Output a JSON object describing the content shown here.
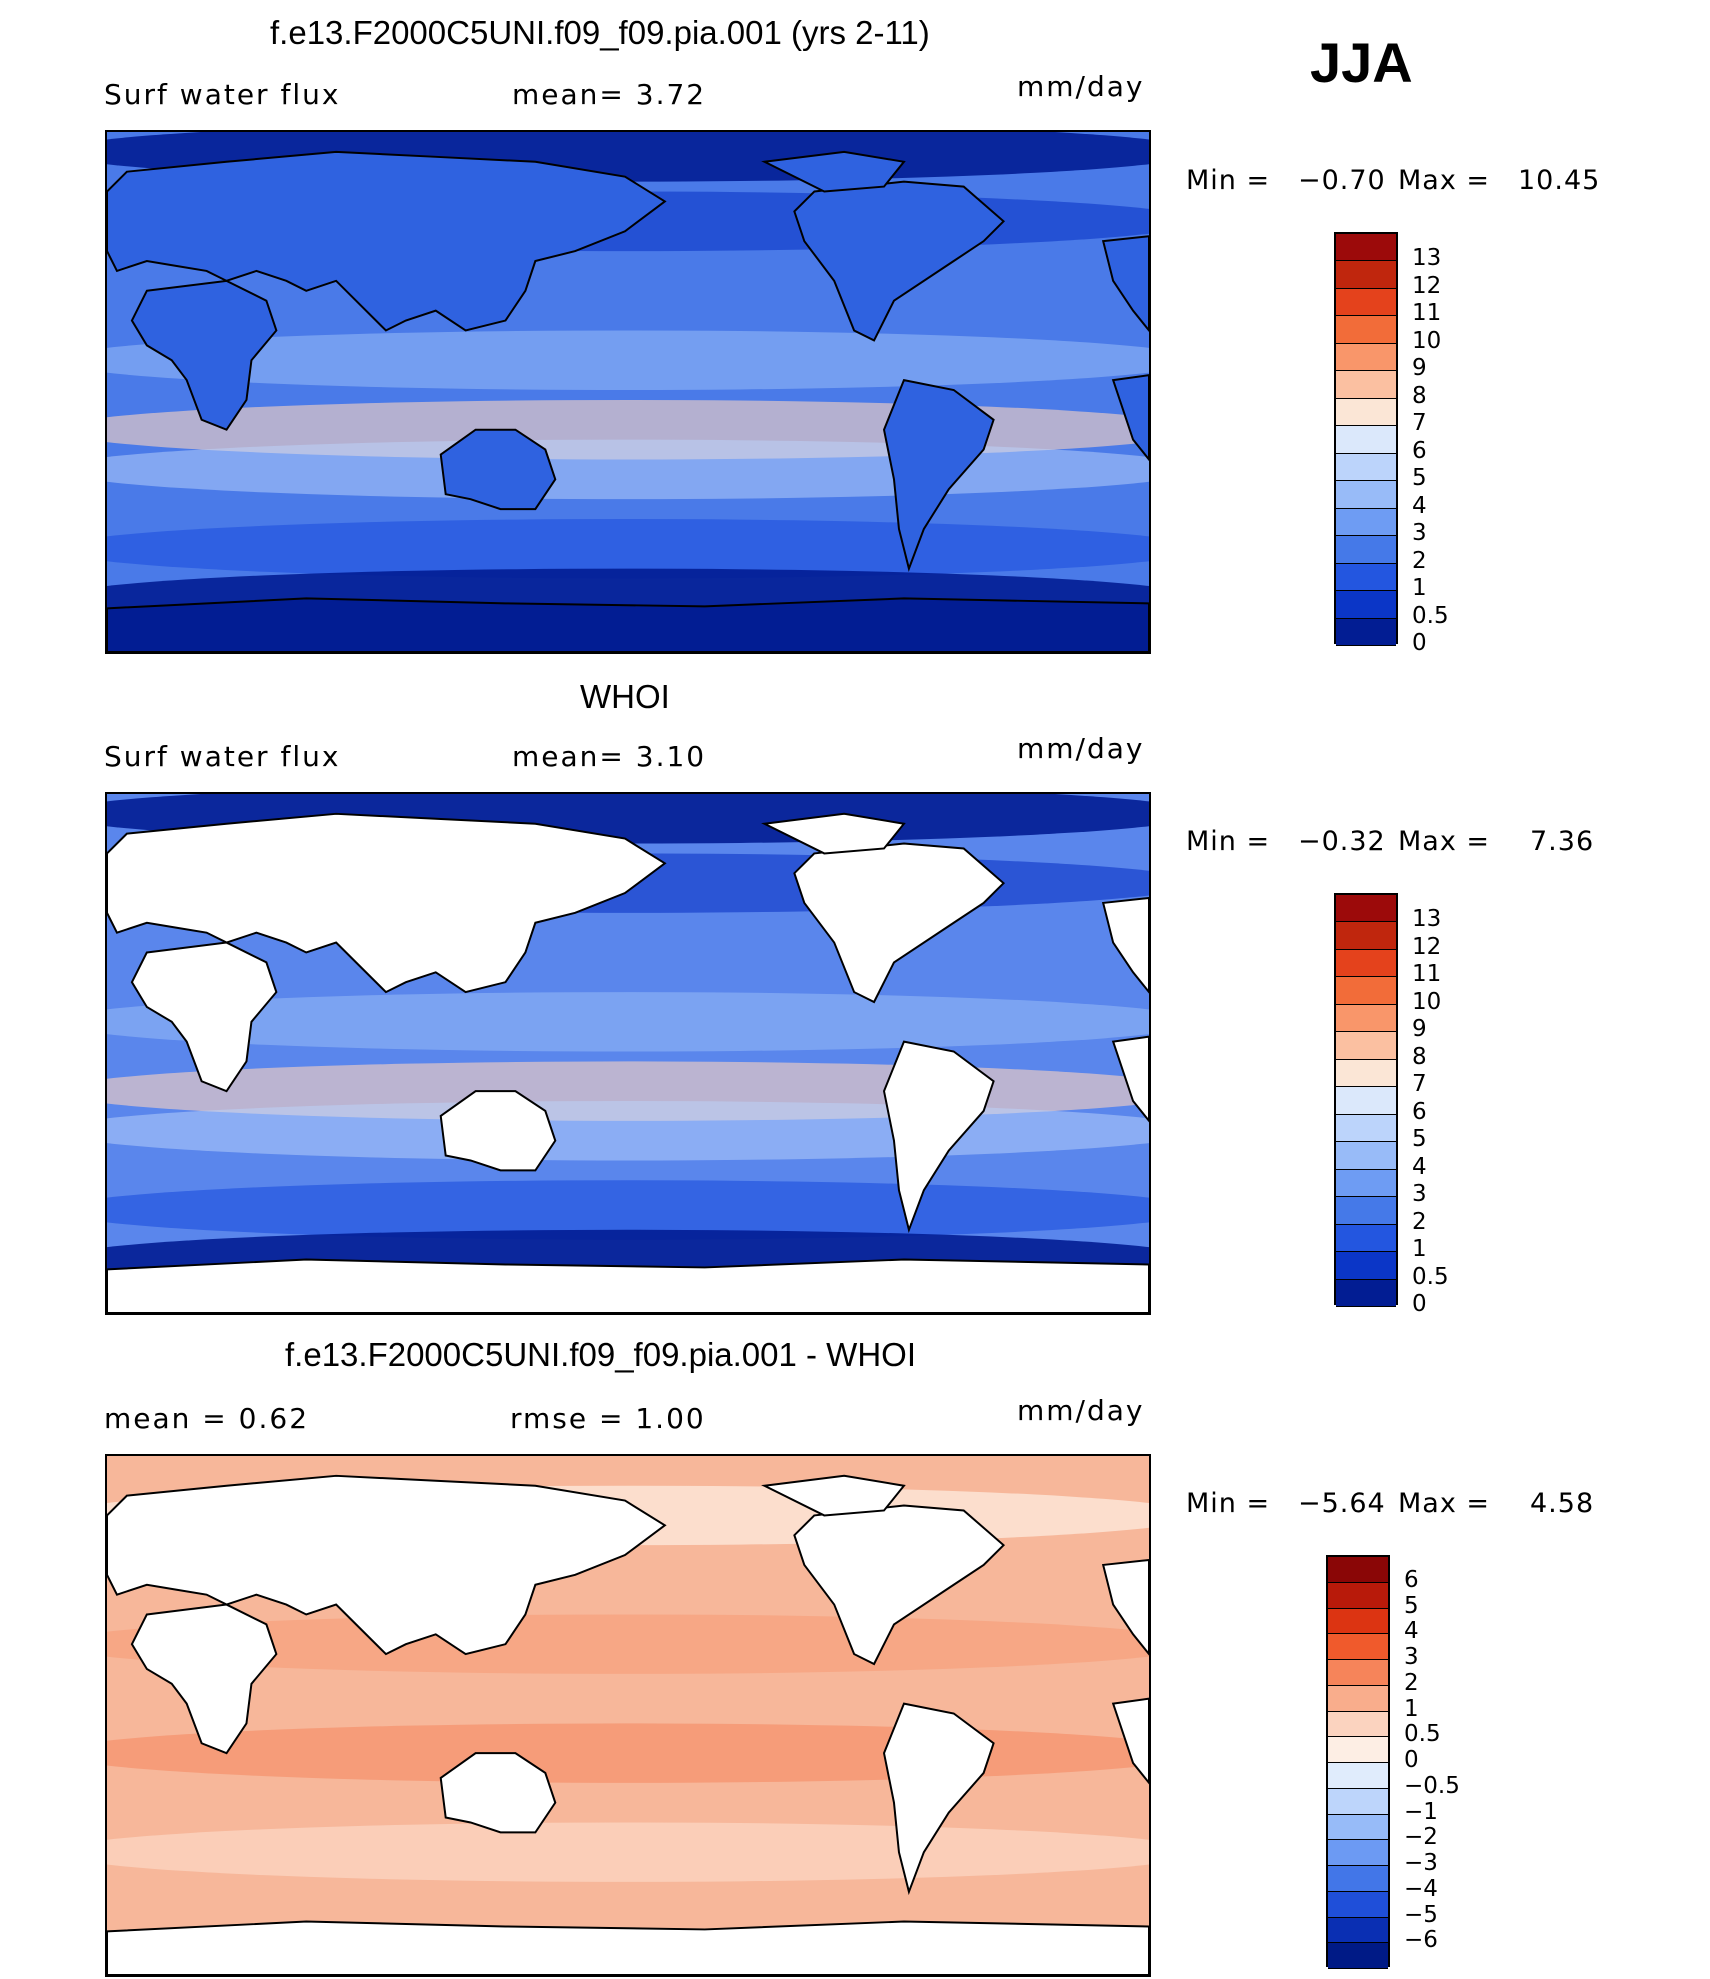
{
  "season": "JJA",
  "panels": [
    {
      "id": "model",
      "title": "f.e13.F2000C5UNI.f09_f09.pia.001 (yrs 2-11)",
      "left_label": "Surf water flux",
      "middle_label": "mean=   3.72",
      "units": "mm/day",
      "min_label": "Min  =",
      "min_value": "−0.70",
      "max_label": "Max  =",
      "max_value": "10.45",
      "background": "#4a7ae8",
      "land_white": false,
      "colorbar_labels": [
        "13",
        "12",
        "11",
        "10",
        "9",
        "8",
        "7",
        "6",
        "5",
        "4",
        "3",
        "2",
        "1",
        "0.5",
        "0"
      ],
      "colorbar_colors": [
        "#9c0a0a",
        "#c0260d",
        "#e4421c",
        "#f26c39",
        "#f9966a",
        "#fbc0a1",
        "#fbe6d6",
        "#dbe8fb",
        "#bcd4fb",
        "#98bbf8",
        "#6e9cf3",
        "#4579e8",
        "#2356e0",
        "#0b36c7",
        "#021d93"
      ]
    },
    {
      "id": "obs",
      "title": "WHOI",
      "left_label": "Surf water flux",
      "middle_label": "mean=   3.10",
      "units": "mm/day",
      "min_label": "Min  =",
      "min_value": "−0.32",
      "max_label": "Max  =",
      "max_value": "7.36",
      "background": "#5a86ec",
      "land_white": true,
      "colorbar_labels": [
        "13",
        "12",
        "11",
        "10",
        "9",
        "8",
        "7",
        "6",
        "5",
        "4",
        "3",
        "2",
        "1",
        "0.5",
        "0"
      ],
      "colorbar_colors": [
        "#9c0a0a",
        "#c0260d",
        "#e4421c",
        "#f26c39",
        "#f9966a",
        "#fbc0a1",
        "#fbe6d6",
        "#dbe8fb",
        "#bcd4fb",
        "#98bbf8",
        "#6e9cf3",
        "#4579e8",
        "#2356e0",
        "#0b36c7",
        "#021d93"
      ]
    },
    {
      "id": "diff",
      "title": "f.e13.F2000C5UNI.f09_f09.pia.001 - WHOI",
      "left_label": "mean  =    0.62",
      "middle_label": "rmse  =    1.00",
      "units": "mm/day",
      "min_label": "Min  =",
      "min_value": "−5.64",
      "max_label": "Max  =",
      "max_value": "4.58",
      "background": "#f7b79a",
      "land_white": true,
      "colorbar_labels": [
        "6",
        "5",
        "4",
        "3",
        "2",
        "1",
        "0.5",
        "0",
        "−0.5",
        "−1",
        "−2",
        "−3",
        "−4",
        "−5",
        "−6"
      ],
      "colorbar_colors": [
        "#8a0606",
        "#b81a0a",
        "#dc3412",
        "#f05a2c",
        "#f6845a",
        "#f9ad8c",
        "#fbd3bf",
        "#fdeee4",
        "#e0ecfc",
        "#bdd5fb",
        "#97bbf8",
        "#6c9af3",
        "#4276e8",
        "#1f4fd9",
        "#0a2fb3",
        "#001a86"
      ]
    }
  ]
}
